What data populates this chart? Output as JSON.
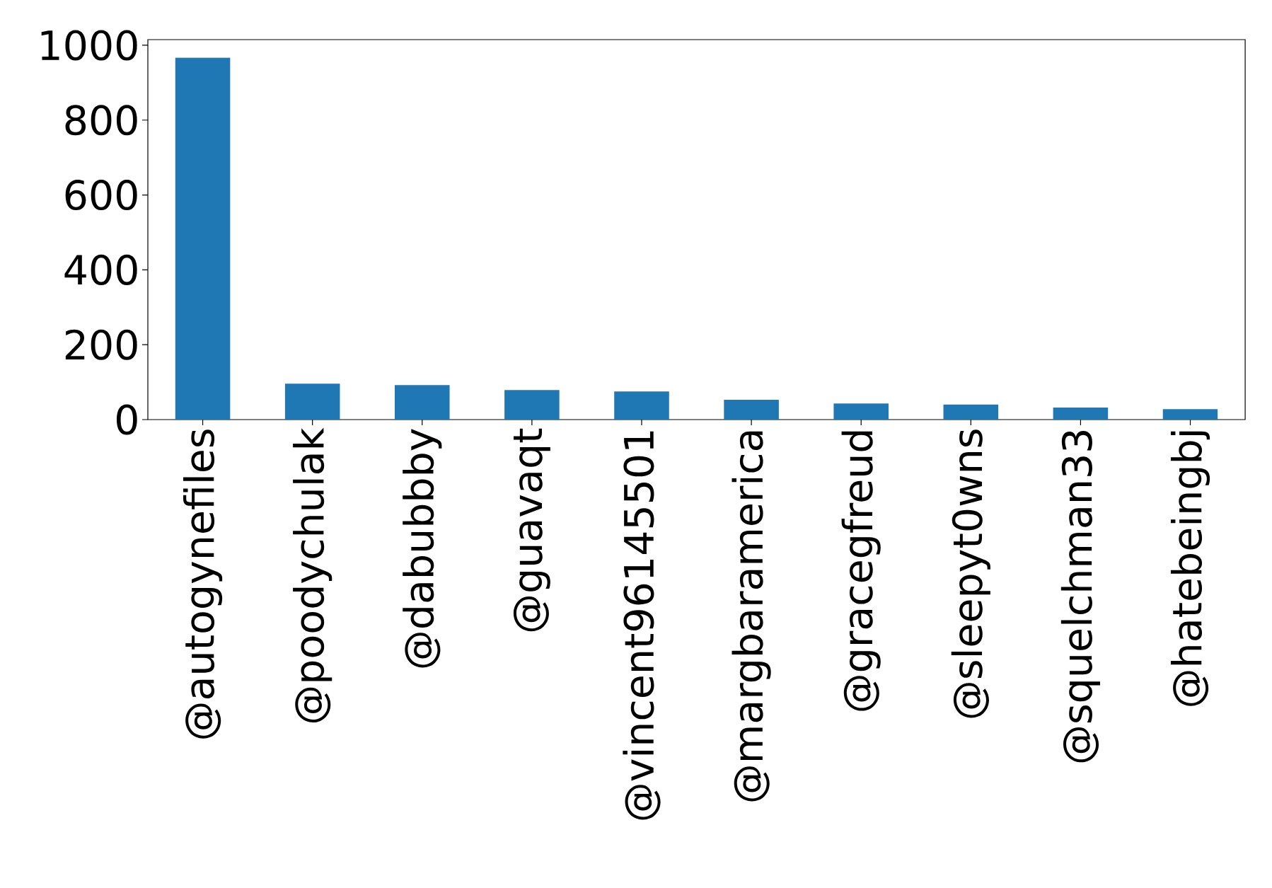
{
  "chart_data": {
    "type": "bar",
    "categories": [
      "@autogynefiles",
      "@poodychulak",
      "@dabubbby",
      "@guavaqt",
      "@vincent96145501",
      "@margbaramerica",
      "@gracegfreud",
      "@sleepyt0wns",
      "@squelchman33",
      "@hatebeingbj"
    ],
    "values": [
      967,
      96,
      92,
      79,
      75,
      53,
      43,
      40,
      32,
      28
    ],
    "color": "#1f77b4",
    "ylim": [
      0,
      1015
    ],
    "yticks": [
      0,
      200,
      400,
      600,
      800,
      1000
    ]
  }
}
